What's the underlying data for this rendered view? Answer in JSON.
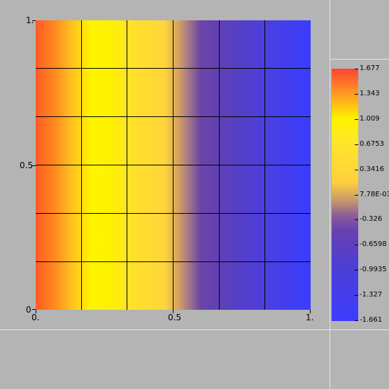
{
  "chart_data": {
    "type": "heatmap",
    "title": "",
    "xlabel": "",
    "ylabel": "",
    "xlim": [
      0,
      1
    ],
    "ylim": [
      0,
      1
    ],
    "x_tick_labels": [
      "0.",
      "0.5",
      "1."
    ],
    "y_tick_labels": [
      "0",
      "0.5",
      "1."
    ],
    "grid": true,
    "legend_placement": "right",
    "colorbar": {
      "min": -1.661,
      "max": 1.677,
      "labels": [
        "1.677",
        "1.343",
        "1.009",
        "0.6753",
        "0.3416",
        "7.78E-03",
        "-0.326",
        "-0.6598",
        "-0.9935",
        "-1.327",
        "-1.661"
      ]
    },
    "colors": {
      "high": "#ff4433",
      "mid_high": "#fff200",
      "zero": "#c89a6b",
      "mid_low": "#6841b0",
      "low": "#3c3dff"
    }
  }
}
